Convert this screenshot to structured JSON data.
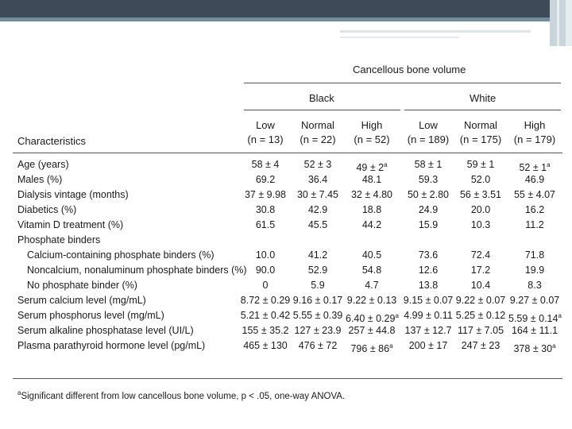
{
  "table": {
    "title": "Cancellous bone volume",
    "groups": [
      "Black",
      "White"
    ],
    "char_header": "Characteristics",
    "columns": [
      {
        "l1": "Low",
        "l2": "(n = 13)"
      },
      {
        "l1": "Normal",
        "l2": "(n = 22)"
      },
      {
        "l1": "High",
        "l2": "(n = 52)"
      },
      {
        "l1": "Low",
        "l2": "(n = 189)"
      },
      {
        "l1": "Normal",
        "l2": "(n = 175)"
      },
      {
        "l1": "High",
        "l2": "(n = 179)"
      }
    ],
    "rows": [
      {
        "label": "Age (years)",
        "indent": false,
        "values": [
          "58 ± 4",
          "52 ± 3",
          "49 ± 2a",
          "58 ± 1",
          "59 ± 1",
          "52 ± 1a"
        ]
      },
      {
        "label": "Males (%)",
        "indent": false,
        "values": [
          "69.2",
          "36.4",
          "48.1",
          "59.3",
          "52.0",
          "46.9"
        ]
      },
      {
        "label": "Dialysis vintage (months)",
        "indent": false,
        "values": [
          "37 ± 9.98",
          "30 ± 7.45",
          "32 ± 4.80",
          "50 ± 2.80",
          "56 ± 3.51",
          "55 ± 4.07"
        ]
      },
      {
        "label": "Diabetics (%)",
        "indent": false,
        "values": [
          "30.8",
          "42.9",
          "18.8",
          "24.9",
          "20.0",
          "16.2"
        ]
      },
      {
        "label": "Vitamin D treatment (%)",
        "indent": false,
        "values": [
          "61.5",
          "45.5",
          "44.2",
          "15.9",
          "10.3",
          "11.2"
        ]
      },
      {
        "label": "Phosphate binders",
        "indent": false,
        "values": [
          "",
          "",
          "",
          "",
          "",
          ""
        ]
      },
      {
        "label": "Calcium-containing phosphate binders (%)",
        "indent": true,
        "values": [
          "10.0",
          "41.2",
          "40.5",
          "73.6",
          "72.4",
          "71.8"
        ]
      },
      {
        "label": "Noncalcium, nonaluminum phosphate binders (%)",
        "indent": true,
        "values": [
          "90.0",
          "52.9",
          "54.8",
          "12.6",
          "17.2",
          "19.9"
        ]
      },
      {
        "label": "No phosphate binder (%)",
        "indent": true,
        "values": [
          "0",
          "5.9",
          "4.7",
          "13.8",
          "10.4",
          "8.3"
        ]
      },
      {
        "label": "Serum calcium level (mg/mL)",
        "indent": false,
        "values": [
          "8.72 ± 0.29",
          "9.16 ± 0.17",
          "9.22 ± 0.13",
          "9.15 ± 0.07",
          "9.22 ± 0.07",
          "9.27 ± 0.07"
        ]
      },
      {
        "label": "Serum phosphorus level (mg/mL)",
        "indent": false,
        "values": [
          "5.21 ± 0.42",
          "5.55 ± 0.39",
          "6.40 ± 0.29a",
          "4.99 ± 0.11",
          "5.25 ± 0.12",
          "5.59 ± 0.14a"
        ]
      },
      {
        "label": "Serum alkaline phosphatase level (UI/L)",
        "indent": false,
        "values": [
          "155 ± 35.2",
          "127 ± 23.9",
          "257 ± 44.8",
          "137 ± 12.7",
          "117 ± 7.05",
          "164 ± 11.1"
        ]
      },
      {
        "label": "Plasma parathyroid hormone level (pg/mL)",
        "indent": false,
        "values": [
          "465 ± 130",
          "476 ± 72",
          "796 ± 86a",
          "200 ± 17",
          "247 ± 23",
          "378 ± 30a"
        ]
      }
    ],
    "footnote": "aSignificant different from low cancellous bone volume, p < .05, one-way ANOVA."
  }
}
